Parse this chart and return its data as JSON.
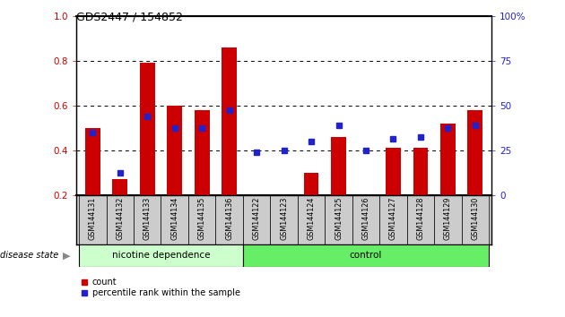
{
  "title": "GDS2447 / 154852",
  "categories": [
    "GSM144131",
    "GSM144132",
    "GSM144133",
    "GSM144134",
    "GSM144135",
    "GSM144136",
    "GSM144122",
    "GSM144123",
    "GSM144124",
    "GSM144125",
    "GSM144126",
    "GSM144127",
    "GSM144128",
    "GSM144129",
    "GSM144130"
  ],
  "red_values": [
    0.5,
    0.27,
    0.79,
    0.6,
    0.58,
    0.86,
    0.2,
    0.2,
    0.3,
    0.46,
    0.2,
    0.41,
    0.41,
    0.52,
    0.58
  ],
  "blue_values": [
    0.48,
    0.3,
    0.55,
    0.5,
    0.5,
    0.58,
    0.39,
    0.4,
    0.44,
    0.51,
    0.4,
    0.45,
    0.46,
    0.5,
    0.51
  ],
  "red_color": "#cc0000",
  "blue_color": "#2222cc",
  "group1_label": "nicotine dependence",
  "group2_label": "control",
  "group1_color": "#ccffcc",
  "group2_color": "#66ee66",
  "disease_state_label": "disease state",
  "ylim_left": [
    0.2,
    1.0
  ],
  "ylim_right": [
    0,
    100
  ],
  "yticks_left": [
    0.2,
    0.4,
    0.6,
    0.8,
    1.0
  ],
  "yticks_right": [
    0,
    25,
    50,
    75,
    100
  ],
  "ytick_labels_right": [
    "0",
    "25",
    "50",
    "75",
    "100%"
  ],
  "legend_count": "count",
  "legend_percentile": "percentile rank within the sample",
  "n_group1": 6,
  "n_group2": 9,
  "bar_bottom": 0.2,
  "bar_width": 0.55,
  "blue_marker_size": 5,
  "xlab_gray": "#cccccc",
  "spine_color": "#000000"
}
